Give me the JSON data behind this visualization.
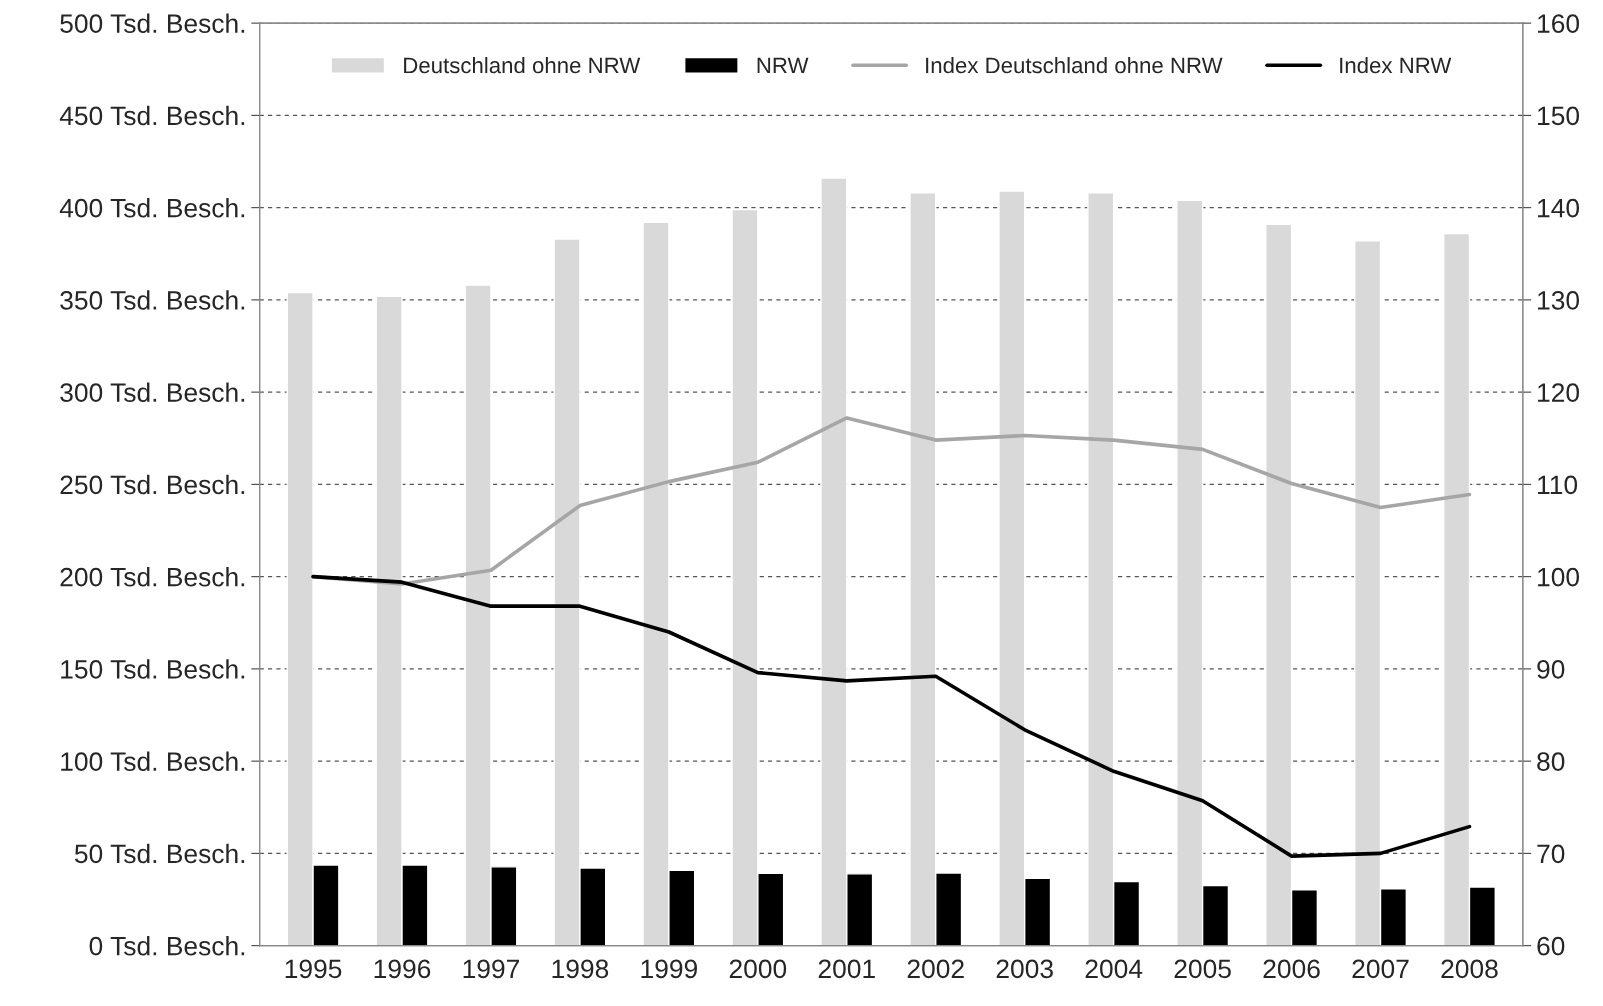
{
  "chart_data": {
    "type": "bar",
    "categories": [
      "1995",
      "1996",
      "1997",
      "1998",
      "1999",
      "2000",
      "2001",
      "2002",
      "2003",
      "2004",
      "2005",
      "2006",
      "2007",
      "2008"
    ],
    "series": [
      {
        "name": "Deutschland ohne NRW",
        "color": "#d9d9d9",
        "values": [
          354,
          352,
          358,
          383,
          392,
          399,
          416,
          408,
          409,
          408,
          404,
          391,
          382,
          386
        ]
      },
      {
        "name": "NRW",
        "color": "#000000",
        "values": [
          43.7,
          43.7,
          42.7,
          42.1,
          40.8,
          39.2,
          38.9,
          39.4,
          36.5,
          34.7,
          32.6,
          30.2,
          30.8,
          31.8
        ]
      },
      {
        "type": "line",
        "name": "Index Deutschland ohne NRW",
        "color": "#a6a6a6",
        "axis": "y2",
        "values": [
          100,
          99.2,
          100.7,
          107.7,
          110.3,
          112.4,
          117.2,
          114.8,
          115.3,
          114.8,
          113.8,
          110.1,
          107.5,
          108.9
        ]
      },
      {
        "type": "line",
        "name": "Index NRW",
        "color": "#000000",
        "axis": "y2",
        "values": [
          100,
          99.4,
          96.8,
          96.8,
          94.0,
          89.6,
          88.7,
          89.2,
          83.4,
          78.9,
          75.7,
          69.7,
          70.0,
          72.9
        ]
      }
    ],
    "ylim": [
      0,
      500
    ],
    "yticks": [
      {
        "value": 0,
        "label": "0 Tsd. Besch."
      },
      {
        "value": 50,
        "label": "50 Tsd. Besch."
      },
      {
        "value": 100,
        "label": "100 Tsd. Besch."
      },
      {
        "value": 150,
        "label": "150 Tsd. Besch."
      },
      {
        "value": 200,
        "label": "200 Tsd. Besch."
      },
      {
        "value": 250,
        "label": "250 Tsd. Besch."
      },
      {
        "value": 300,
        "label": "300 Tsd. Besch."
      },
      {
        "value": 350,
        "label": "350 Tsd. Besch."
      },
      {
        "value": 400,
        "label": "400 Tsd. Besch."
      },
      {
        "value": 450,
        "label": "450 Tsd. Besch."
      },
      {
        "value": 500,
        "label": "500 Tsd. Besch."
      }
    ],
    "y2lim": [
      60,
      160
    ],
    "y2ticks": [
      60,
      70,
      80,
      90,
      100,
      110,
      120,
      130,
      140,
      150,
      160
    ],
    "grid": "y",
    "legend": "top",
    "line_style": "solid"
  }
}
